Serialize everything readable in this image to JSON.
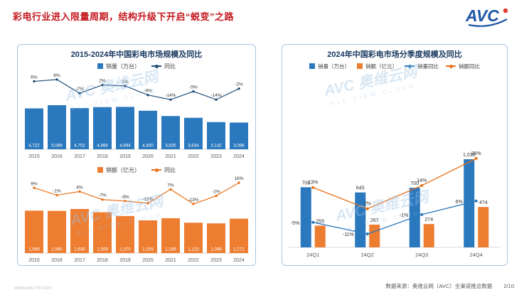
{
  "header": {
    "title": "彩电行业进入限量周期，结构升级下开启“蜕变”之路",
    "logo_text": "AVC"
  },
  "panels": {
    "left": {
      "title": "2015-2024年中国彩电市场规模及同比"
    },
    "right": {
      "title": "2024年中国彩电市场分季度规模及同比"
    }
  },
  "watermark": {
    "text": "AVC 奥维云网",
    "sub": "ALL VIEW CLOUD"
  },
  "footer": {
    "website": "www.avc-mr.com",
    "source": "数据来源：奥维云网（AVC）全渠道推总数据",
    "page": "2/10"
  },
  "colors": {
    "title_red": "#c4161d",
    "panel_border": "#a8c4e4",
    "chart_title_navy": "#17375e",
    "bar_blue": "#2a78bd",
    "bar_orange": "#ed7d31",
    "line_navy": "#1f4e79",
    "line_orange": "#e8711a",
    "logo_blue": "#1b57a6",
    "logo_red": "#e23a2e",
    "watermark_blue": "#9dc3e6"
  },
  "chart_data": [
    {
      "type": "bar",
      "name": "annual-volume",
      "panel_title": "2015-2024年中国彩电市场规模及同比",
      "legend": [
        {
          "label": "销量（万台）",
          "symbol": "square",
          "color": "#2a78bd"
        },
        {
          "label": "同比",
          "symbol": "line",
          "color": "#1f4e79"
        }
      ],
      "categories": [
        "2015",
        "2016",
        "2017",
        "2018",
        "2019",
        "2020",
        "2021",
        "2022",
        "2023",
        "2024"
      ],
      "values": [
        4722,
        5089,
        4752,
        4868,
        4894,
        4450,
        3835,
        3634,
        3142,
        3086
      ],
      "value_labels": [
        "4,722",
        "5,089",
        "4,752",
        "4,868",
        "4,894",
        "4,450",
        "3,835",
        "3,634",
        "3,142",
        "3,086"
      ],
      "yoy_pct": [
        6,
        8,
        -7,
        2,
        1,
        -9,
        -14,
        -5,
        -14,
        -2
      ],
      "yoy_labels": [
        "6%",
        "8%",
        "-7%",
        "2%",
        "1%",
        "-9%",
        "-14%",
        "-5%",
        "-14%",
        "-2%"
      ],
      "ylim": [
        0,
        5500
      ]
    },
    {
      "type": "bar",
      "name": "annual-value",
      "panel_title": "2015-2024年中国彩电市场规模及同比",
      "legend": [
        {
          "label": "销额（亿元）",
          "symbol": "square",
          "color": "#ed7d31"
        },
        {
          "label": "同比",
          "symbol": "line",
          "color": "#e8711a"
        }
      ],
      "categories": [
        "2015",
        "2016",
        "2017",
        "2018",
        "2019",
        "2020",
        "2021",
        "2022",
        "2023",
        "2024"
      ],
      "values": [
        1569,
        1560,
        1630,
        1509,
        1370,
        1209,
        1289,
        1123,
        1098,
        1271
      ],
      "value_labels": [
        "1,569",
        "1,560",
        "1,630",
        "1,509",
        "1,370",
        "1,209",
        "1,289",
        "1,123",
        "1,098",
        "1,271"
      ],
      "yoy_pct": [
        9,
        -1,
        4,
        -7,
        -9,
        -12,
        7,
        -13,
        -2,
        16
      ],
      "yoy_labels": [
        "9%",
        "-1%",
        "4%",
        "-7%",
        "-9%",
        "-12%",
        "7%",
        "-13%",
        "-2%",
        "16%"
      ],
      "ylim": [
        0,
        1800
      ]
    },
    {
      "type": "grouped-bar",
      "name": "quarterly",
      "panel_title": "2024年中国彩电市场分季度规模及同比",
      "legend": [
        {
          "label": "销量（万台）",
          "symbol": "square",
          "color": "#2a78bd"
        },
        {
          "label": "销额（亿元）",
          "symbol": "square",
          "color": "#ed7d31"
        },
        {
          "label": "销量同比",
          "symbol": "line",
          "color": "#2a78bd"
        },
        {
          "label": "销额同比",
          "symbol": "line",
          "color": "#e8711a"
        }
      ],
      "categories": [
        "24Q1",
        "24Q2",
        "24Q3",
        "24Q4"
      ],
      "series": [
        {
          "name": "销量（万台）",
          "kind": "bar",
          "values": [
            706,
            645,
            700,
            1035
          ],
          "labels": [
            "706",
            "645",
            "700",
            "1,035"
          ]
        },
        {
          "name": "销额（亿元）",
          "kind": "bar",
          "values": [
            255,
            267,
            274,
            474
          ],
          "labels": [
            "255",
            "267",
            "274",
            "474"
          ]
        },
        {
          "name": "销量同比",
          "kind": "line",
          "pct": [
            -5,
            -11,
            -1,
            6
          ],
          "labels": [
            "-5%",
            "-11%",
            "-1%",
            "6%"
          ]
        },
        {
          "name": "销额同比",
          "kind": "line",
          "pct": [
            13,
            2,
            14,
            28
          ],
          "labels": [
            "13%",
            "2%",
            "14%",
            "28%"
          ]
        }
      ],
      "ylim": [
        0,
        1100
      ]
    }
  ]
}
